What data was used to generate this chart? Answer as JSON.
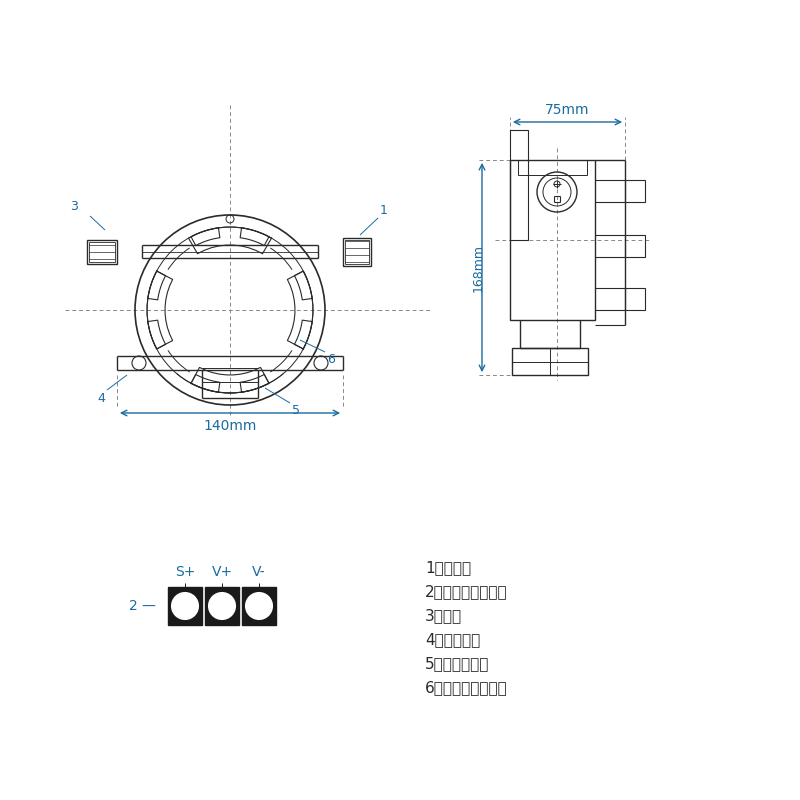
{
  "bg_color": "#ffffff",
  "line_color": "#2a2a2a",
  "dim_color": "#1a6ba0",
  "dim_140": "140mm",
  "dim_75": "75mm",
  "dim_168": "168mm",
  "annot_texts": [
    "1、入线孔",
    "2、变送器接线端子",
    "3、堪头",
    "4、安装支架",
    "5、气敏传感器",
    "6、传感器接线端子"
  ],
  "term_labels": [
    "S+",
    "V+",
    "V-"
  ]
}
